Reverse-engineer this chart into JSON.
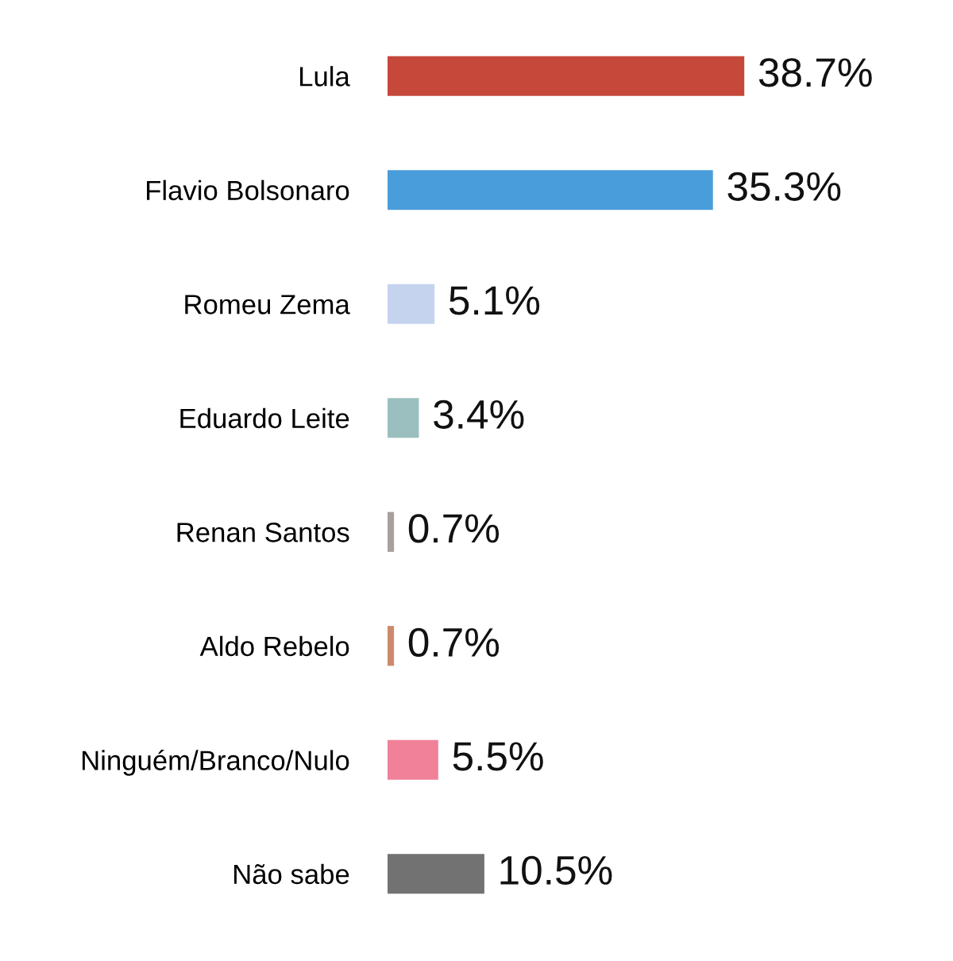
{
  "chart_data": {
    "type": "bar",
    "orientation": "horizontal",
    "categories": [
      "Lula",
      "Flavio Bolsonaro",
      "Romeu Zema",
      "Eduardo Leite",
      "Renan Santos",
      "Aldo Rebelo",
      "Ninguém/Branco/Nulo",
      "Não sabe"
    ],
    "values": [
      38.7,
      35.3,
      5.1,
      3.4,
      0.7,
      0.7,
      5.5,
      10.5
    ],
    "colors": [
      "#c5483b",
      "#4a9ddb",
      "#c5d3ee",
      "#9bbfbf",
      "#a8a09c",
      "#cc8a6c",
      "#f08198",
      "#727272"
    ],
    "value_labels": [
      "38.7%",
      "35.3%",
      "5.1%",
      "3.4%",
      "0.7%",
      "0.7%",
      "5.5%",
      "10.5%"
    ]
  }
}
